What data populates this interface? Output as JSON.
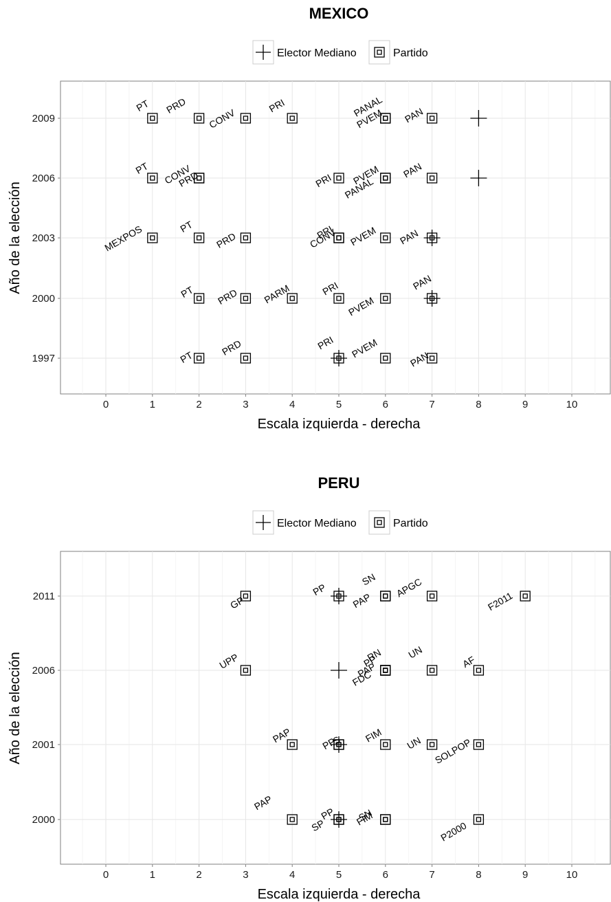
{
  "legend": {
    "elector_label": "Elector Mediano",
    "partido_label": "Partido"
  },
  "chart_data": [
    {
      "type": "scatter",
      "title": "MEXICO",
      "xlabel": "Escala izquierda - derecha",
      "ylabel": "Año de la elección",
      "xlim": [
        -1,
        10.8
      ],
      "x_ticks": [
        0,
        1,
        2,
        3,
        4,
        5,
        6,
        7,
        8,
        9,
        10
      ],
      "categories": [
        "1997",
        "2000",
        "2003",
        "2006",
        "2009"
      ],
      "grid": true,
      "legend_position": "top",
      "median_voter": [
        {
          "year": "2009",
          "x": 8
        },
        {
          "year": "2006",
          "x": 8
        },
        {
          "year": "2003",
          "x": 7
        },
        {
          "year": "2000",
          "x": 7
        },
        {
          "year": "1997",
          "x": 5
        }
      ],
      "parties": [
        {
          "year": "2009",
          "label": "PT",
          "x": 1
        },
        {
          "year": "2009",
          "label": "PRD",
          "x": 2
        },
        {
          "year": "2009",
          "label": "CONV",
          "x": 3
        },
        {
          "year": "2009",
          "label": "PRI",
          "x": 4
        },
        {
          "year": "2009",
          "label": "PANAL",
          "x": 6
        },
        {
          "year": "2009",
          "label": "PVEM",
          "x": 6
        },
        {
          "year": "2009",
          "label": "PAN",
          "x": 7
        },
        {
          "year": "2006",
          "label": "PT",
          "x": 1
        },
        {
          "year": "2006",
          "label": "CONV",
          "x": 2
        },
        {
          "year": "2006",
          "label": "PRD",
          "x": 2
        },
        {
          "year": "2006",
          "label": "PRI",
          "x": 5
        },
        {
          "year": "2006",
          "label": "PVEM",
          "x": 6
        },
        {
          "year": "2006",
          "label": "PANAL",
          "x": 6
        },
        {
          "year": "2006",
          "label": "PAN",
          "x": 7
        },
        {
          "year": "2003",
          "label": "MEXPOS",
          "x": 1
        },
        {
          "year": "2003",
          "label": "PT",
          "x": 2
        },
        {
          "year": "2003",
          "label": "PRD",
          "x": 3
        },
        {
          "year": "2003",
          "label": "PRI",
          "x": 5
        },
        {
          "year": "2003",
          "label": "CONV",
          "x": 5
        },
        {
          "year": "2003",
          "label": "PVEM",
          "x": 6
        },
        {
          "year": "2003",
          "label": "PAN",
          "x": 7
        },
        {
          "year": "2000",
          "label": "PT",
          "x": 2
        },
        {
          "year": "2000",
          "label": "PRD",
          "x": 3
        },
        {
          "year": "2000",
          "label": "PARM",
          "x": 4
        },
        {
          "year": "2000",
          "label": "PRI",
          "x": 5
        },
        {
          "year": "2000",
          "label": "PVEM",
          "x": 6
        },
        {
          "year": "2000",
          "label": "PAN",
          "x": 7
        },
        {
          "year": "1997",
          "label": "PT",
          "x": 2
        },
        {
          "year": "1997",
          "label": "PRD",
          "x": 3
        },
        {
          "year": "1997",
          "label": "PRI",
          "x": 5
        },
        {
          "year": "1997",
          "label": "PVEM",
          "x": 6
        },
        {
          "year": "1997",
          "label": "PAN",
          "x": 7
        }
      ]
    },
    {
      "type": "scatter",
      "title": "PERU",
      "xlabel": "Escala izquierda - derecha",
      "ylabel": "Año de la elección",
      "xlim": [
        -1,
        10.8
      ],
      "x_ticks": [
        0,
        1,
        2,
        3,
        4,
        5,
        6,
        7,
        8,
        9,
        10
      ],
      "categories": [
        "2000",
        "2001",
        "2006",
        "2011"
      ],
      "grid": true,
      "legend_position": "top",
      "median_voter": [
        {
          "year": "2011",
          "x": 5
        },
        {
          "year": "2006",
          "x": 5
        },
        {
          "year": "2001",
          "x": 5
        },
        {
          "year": "2000",
          "x": 5
        }
      ],
      "parties": [
        {
          "year": "2011",
          "label": "GP",
          "x": 3
        },
        {
          "year": "2011",
          "label": "PP",
          "x": 5
        },
        {
          "year": "2011",
          "label": "SN",
          "x": 6
        },
        {
          "year": "2011",
          "label": "PAP",
          "x": 6
        },
        {
          "year": "2011",
          "label": "APGC",
          "x": 7
        },
        {
          "year": "2011",
          "label": "F2011",
          "x": 9
        },
        {
          "year": "2006",
          "label": "UPP",
          "x": 3
        },
        {
          "year": "2006",
          "label": "PP",
          "x": 6
        },
        {
          "year": "2006",
          "label": "RN",
          "x": 6
        },
        {
          "year": "2006",
          "label": "PAP",
          "x": 6
        },
        {
          "year": "2006",
          "label": "FDC",
          "x": 6
        },
        {
          "year": "2006",
          "label": "UN",
          "x": 7
        },
        {
          "year": "2006",
          "label": "AF",
          "x": 8
        },
        {
          "year": "2001",
          "label": "PAP",
          "x": 4
        },
        {
          "year": "2001",
          "label": "PP",
          "x": 5
        },
        {
          "year": "2001",
          "label": "S",
          "x": 5
        },
        {
          "year": "2001",
          "label": "FIM",
          "x": 6
        },
        {
          "year": "2001",
          "label": "UN",
          "x": 7
        },
        {
          "year": "2001",
          "label": "SOLPOP",
          "x": 8
        },
        {
          "year": "2000",
          "label": "PAP",
          "x": 4
        },
        {
          "year": "2000",
          "label": "PP",
          "x": 5
        },
        {
          "year": "2000",
          "label": "SP",
          "x": 5
        },
        {
          "year": "2000",
          "label": "SN",
          "x": 6
        },
        {
          "year": "2000",
          "label": "FIM",
          "x": 6
        },
        {
          "year": "2000",
          "label": "P2000",
          "x": 8
        }
      ]
    }
  ]
}
